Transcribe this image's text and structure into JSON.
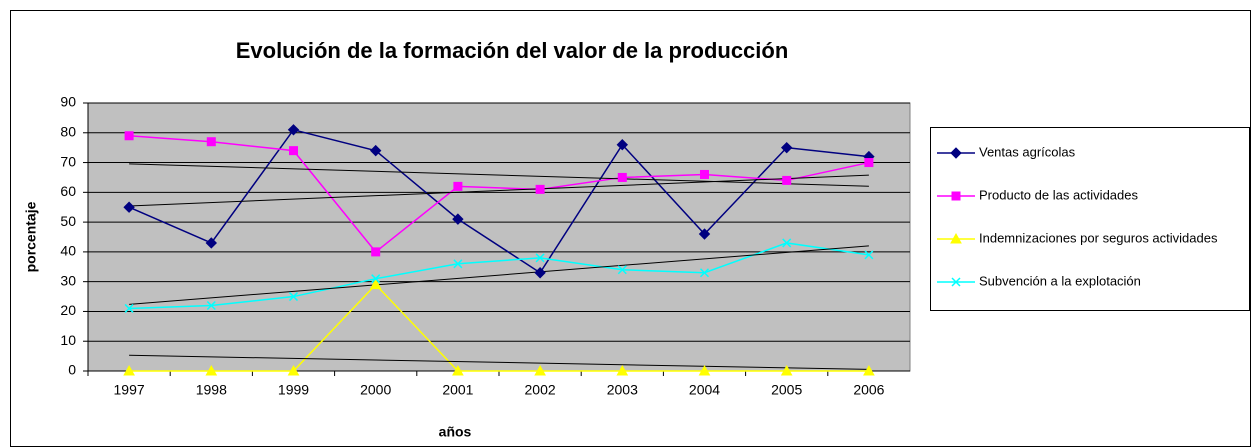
{
  "chart_data": {
    "type": "line",
    "title": "Evolución de la formación del valor de la producción",
    "x_label": "años",
    "y_label": "porcentaje",
    "categories": [
      "1997",
      "1998",
      "1999",
      "2000",
      "2001",
      "2002",
      "2003",
      "2004",
      "2005",
      "2006"
    ],
    "series": [
      {
        "name": "Ventas agrícolas",
        "color": "#000080",
        "marker": "diamond",
        "trendline": true,
        "values": [
          55,
          43,
          81,
          74,
          51,
          33,
          76,
          46,
          75,
          72
        ]
      },
      {
        "name": "Producto de las actividades",
        "color": "#ff00ff",
        "marker": "square",
        "trendline": true,
        "values": [
          79,
          77,
          74,
          40,
          62,
          61,
          65,
          66,
          64,
          70
        ]
      },
      {
        "name": "Indemnizaciones por seguros actividades",
        "color": "#ffff00",
        "marker": "triangle",
        "trendline": true,
        "values": [
          0,
          0,
          0,
          29,
          0,
          0,
          0,
          0,
          0,
          0
        ]
      },
      {
        "name": "Subvención a la explotación",
        "color": "#00ffff",
        "marker": "x",
        "trendline": true,
        "values": [
          21,
          22,
          25,
          31,
          36,
          38,
          34,
          33,
          43,
          39
        ]
      }
    ],
    "ylim": [
      0,
      90
    ],
    "yticks": [
      0,
      10,
      20,
      30,
      40,
      50,
      60,
      70,
      80,
      90
    ],
    "grid": true,
    "legend": "right"
  }
}
